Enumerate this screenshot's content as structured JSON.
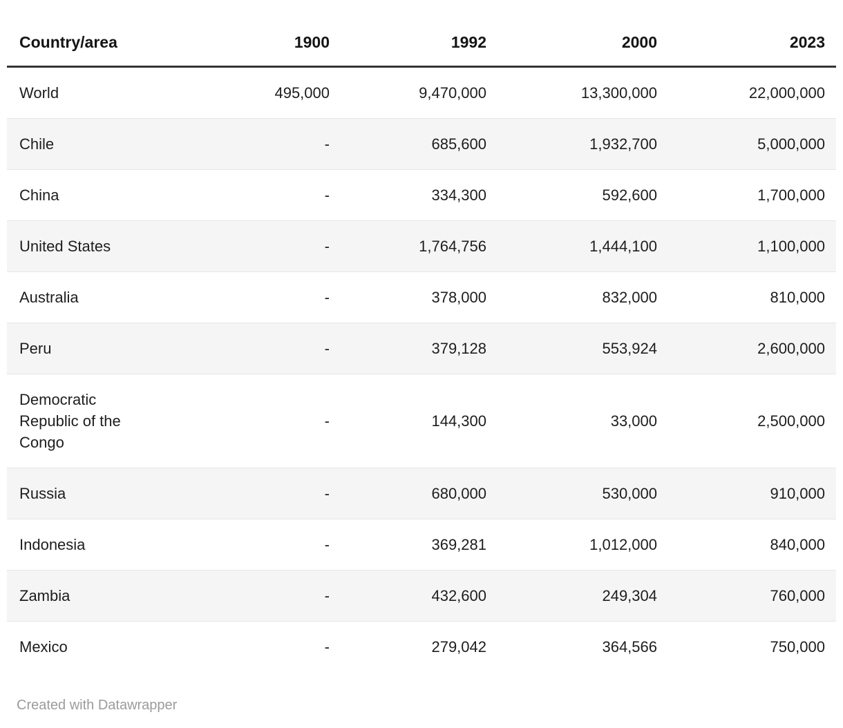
{
  "chart_data": {
    "type": "table",
    "columns": [
      "Country/area",
      "1900",
      "1992",
      "2000",
      "2023"
    ],
    "rows": [
      {
        "country": "World",
        "values": [
          "495,000",
          "9,470,000",
          "13,300,000",
          "22,000,000"
        ]
      },
      {
        "country": "Chile",
        "values": [
          "-",
          "685,600",
          "1,932,700",
          "5,000,000"
        ]
      },
      {
        "country": "China",
        "values": [
          "-",
          "334,300",
          "592,600",
          "1,700,000"
        ]
      },
      {
        "country": "United States",
        "values": [
          "-",
          "1,764,756",
          "1,444,100",
          "1,100,000"
        ]
      },
      {
        "country": "Australia",
        "values": [
          "-",
          "378,000",
          "832,000",
          "810,000"
        ]
      },
      {
        "country": "Peru",
        "values": [
          "-",
          "379,128",
          "553,924",
          "2,600,000"
        ]
      },
      {
        "country": "Democratic Republic of the Congo",
        "values": [
          "-",
          "144,300",
          "33,000",
          "2,500,000"
        ]
      },
      {
        "country": "Russia",
        "values": [
          "-",
          "680,000",
          "530,000",
          "910,000"
        ]
      },
      {
        "country": "Indonesia",
        "values": [
          "-",
          "369,281",
          "1,012,000",
          "840,000"
        ]
      },
      {
        "country": "Zambia",
        "values": [
          "-",
          "432,600",
          "249,304",
          "760,000"
        ]
      },
      {
        "country": "Mexico",
        "values": [
          "-",
          "279,042",
          "364,566",
          "750,000"
        ]
      }
    ],
    "title": "",
    "legend_position": "none",
    "grid": "row-stripes"
  },
  "footer": {
    "attribution": "Created with Datawrapper"
  },
  "colors": {
    "stripe": "#f5f5f5",
    "header_border": "#333333",
    "row_border": "#e6e6e6",
    "text": "#1d1d1d",
    "header_text": "#141414",
    "footer_text": "#9b9b9b",
    "background": "#ffffff"
  }
}
